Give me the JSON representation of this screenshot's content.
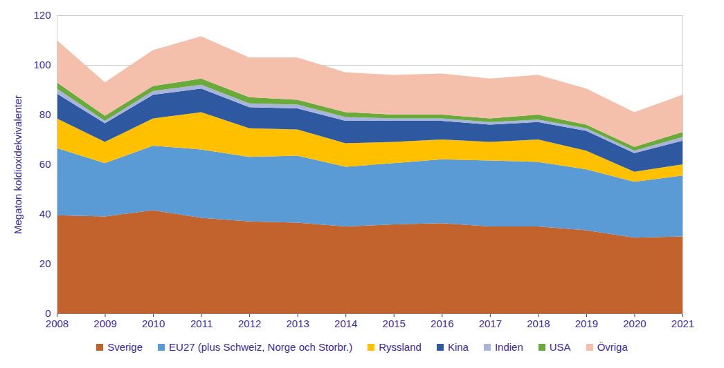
{
  "chart_data": {
    "type": "area",
    "stacked": true,
    "grid": true,
    "legend": "bottom",
    "y_label": "Megaton koldioxidekvivalenter",
    "x": [
      2008,
      2009,
      2010,
      2011,
      2012,
      2013,
      2014,
      2015,
      2016,
      2017,
      2018,
      2019,
      2020,
      2021
    ],
    "xlim": [
      2008,
      2021
    ],
    "xticks": [
      2008,
      2009,
      2010,
      2011,
      2012,
      2013,
      2014,
      2015,
      2016,
      2017,
      2018,
      2019,
      2020,
      2021
    ],
    "ylim": [
      0,
      120
    ],
    "yticks": [
      0,
      20,
      40,
      60,
      80,
      100,
      120
    ],
    "series": [
      {
        "name": "Sverige",
        "color": "#c2622c",
        "values": [
          39.5,
          39,
          41.5,
          38.5,
          37,
          36.5,
          35,
          35.8,
          36.3,
          35,
          35,
          33.5,
          30.5,
          31
        ]
      },
      {
        "name": "EU27 (plus Schweiz, Norge och Storbr.)",
        "color": "#5b9bd5",
        "values": [
          27,
          21.5,
          26,
          27.5,
          26,
          27,
          24,
          24.7,
          25.7,
          26.5,
          26,
          24.5,
          22.5,
          24.5
        ]
      },
      {
        "name": "Ryssland",
        "color": "#ffc000",
        "values": [
          12,
          8.5,
          11,
          15,
          11.5,
          10.5,
          9.5,
          8.5,
          8,
          7.5,
          9,
          7.5,
          4,
          4.5
        ]
      },
      {
        "name": "Kina",
        "color": "#2e58a0",
        "values": [
          10,
          7.5,
          9.5,
          9.5,
          8.5,
          8.5,
          9,
          8.5,
          7.5,
          7,
          7,
          8,
          7.5,
          9.5
        ]
      },
      {
        "name": "Indien",
        "color": "#a9b4dd",
        "values": [
          2,
          1,
          1.5,
          1.5,
          1.5,
          1.5,
          1.5,
          1,
          1,
          1,
          1,
          1,
          1,
          1.5
        ]
      },
      {
        "name": "USA",
        "color": "#6aaa3a",
        "values": [
          2.5,
          2,
          2,
          2.5,
          2.5,
          2,
          2,
          1.5,
          1.5,
          1.5,
          2,
          1.5,
          1.5,
          2
        ]
      },
      {
        "name": "Övriga",
        "color": "#f4bfab",
        "values": [
          17,
          13.5,
          14.5,
          17,
          16,
          17,
          16,
          16,
          16.5,
          16,
          16,
          14.5,
          14,
          15
        ]
      }
    ]
  }
}
